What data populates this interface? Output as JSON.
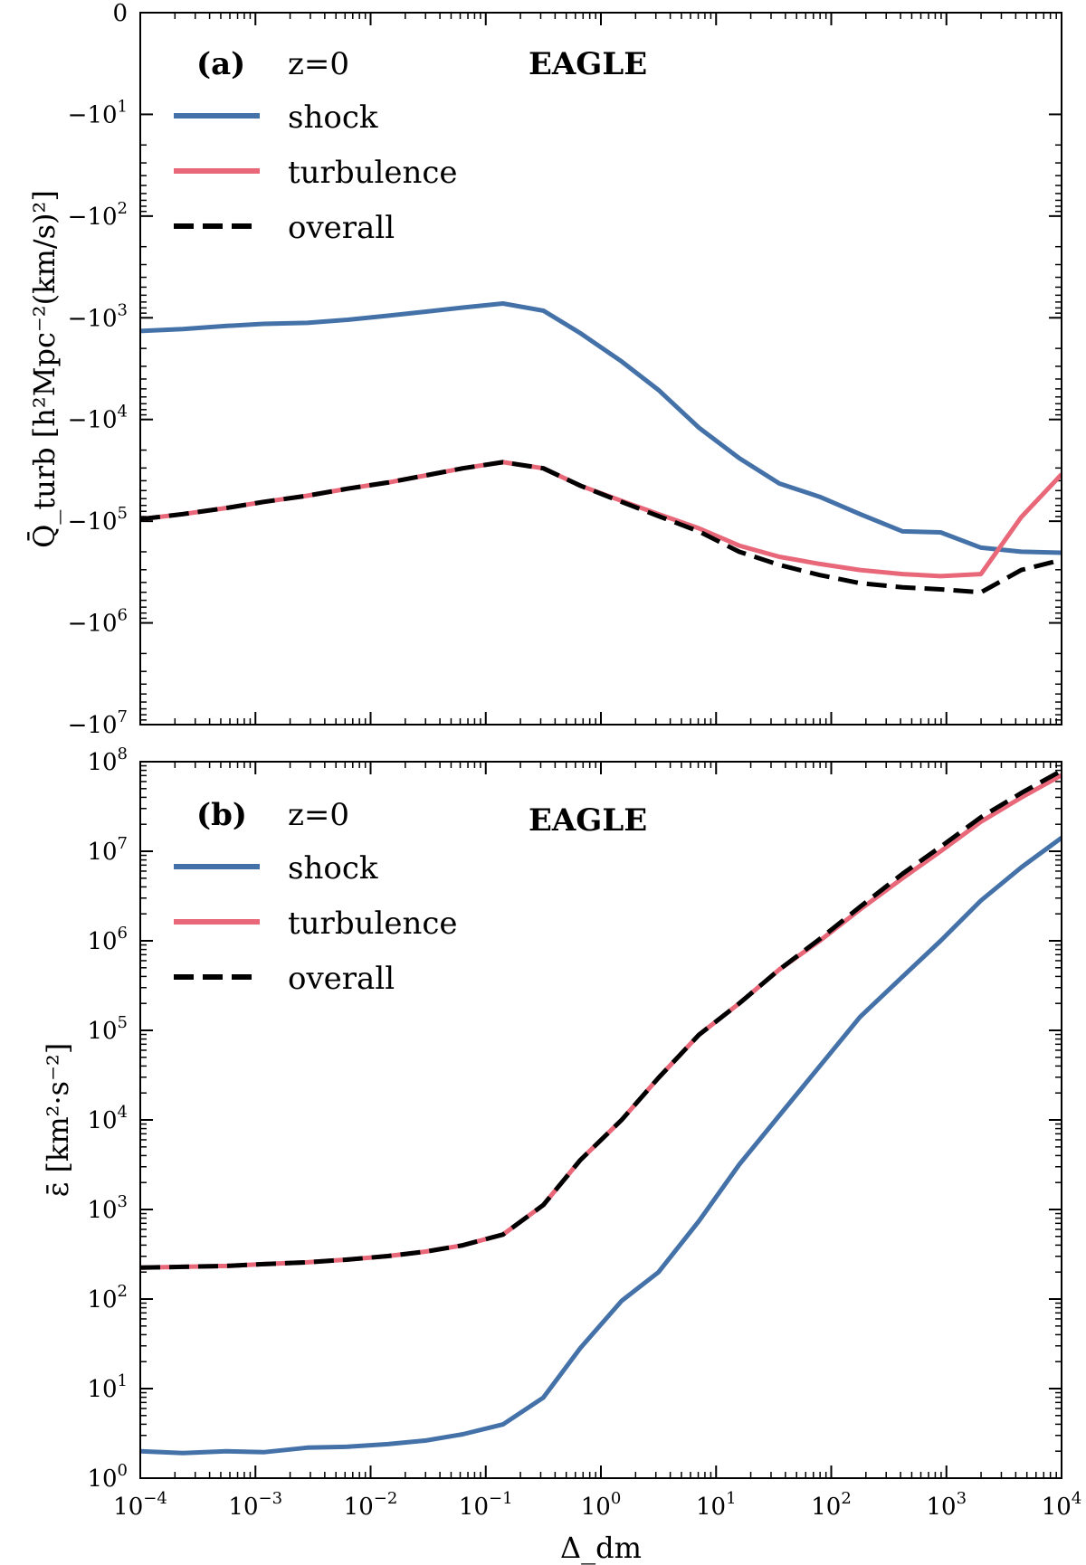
{
  "chart_data": [
    {
      "type": "line",
      "panel": "(a)",
      "redshift_label": "z=0",
      "simulation_label": "EAGLE",
      "xlabel": "Δ_dm",
      "ylabel": "Q̄_turb [h²Mpc⁻²(km/s)²]",
      "xscale": "log",
      "yscale": "symlog-negative",
      "xlim": [
        0.0001,
        10000
      ],
      "ylim": [
        0,
        -10000000
      ],
      "x_ticks": [
        "10^-4",
        "10^-3",
        "10^-2",
        "10^-1",
        "10^0",
        "10^1",
        "10^2",
        "10^3",
        "10^4"
      ],
      "y_ticks": [
        "0",
        "-10^1",
        "-10^2",
        "-10^3",
        "-10^4",
        "-10^5",
        "-10^6",
        "-10^7"
      ],
      "x_log": [
        -4,
        -3.63,
        -3.25,
        -2.93,
        -2.55,
        -2.2,
        -1.85,
        -1.52,
        -1.2,
        -0.85,
        -0.5,
        -0.18,
        0.18,
        0.5,
        0.85,
        1.2,
        1.55,
        1.9,
        2.25,
        2.62,
        2.95,
        3.3,
        3.65,
        4
      ],
      "series": [
        {
          "name": "shock",
          "color": "#4472a8",
          "style": "solid",
          "values_log_abs": [
            3.13,
            3.11,
            3.08,
            3.06,
            3.05,
            3.02,
            2.98,
            2.94,
            2.9,
            2.86,
            2.93,
            3.15,
            3.43,
            3.71,
            4.08,
            4.38,
            4.63,
            4.76,
            4.93,
            5.1,
            5.11,
            5.26,
            5.3,
            5.31
          ]
        },
        {
          "name": "turbulence",
          "color": "#e8687a",
          "style": "solid",
          "values_log_abs": [
            4.98,
            4.93,
            4.87,
            4.81,
            4.75,
            4.68,
            4.62,
            4.55,
            4.48,
            4.42,
            4.48,
            4.65,
            4.8,
            4.93,
            5.07,
            5.24,
            5.35,
            5.42,
            5.48,
            5.52,
            5.54,
            5.52,
            4.96,
            4.54
          ]
        },
        {
          "name": "overall",
          "color": "#000000",
          "style": "dashed",
          "values_log_abs": [
            4.98,
            4.93,
            4.87,
            4.81,
            4.75,
            4.68,
            4.62,
            4.55,
            4.48,
            4.42,
            4.48,
            4.65,
            4.81,
            4.95,
            5.1,
            5.3,
            5.43,
            5.53,
            5.61,
            5.65,
            5.67,
            5.7,
            5.48,
            5.38
          ]
        }
      ]
    },
    {
      "type": "line",
      "panel": "(b)",
      "redshift_label": "z=0",
      "simulation_label": "EAGLE",
      "xlabel": "Δ_dm",
      "ylabel": "ε̄ [km²·s⁻²]",
      "xscale": "log",
      "yscale": "log",
      "xlim": [
        0.0001,
        10000
      ],
      "ylim": [
        1,
        100000000
      ],
      "x_ticks": [
        "10^-4",
        "10^-3",
        "10^-2",
        "10^-1",
        "10^0",
        "10^1",
        "10^2",
        "10^3",
        "10^4"
      ],
      "y_ticks": [
        "10^0",
        "10^1",
        "10^2",
        "10^3",
        "10^4",
        "10^5",
        "10^6",
        "10^7",
        "10^8"
      ],
      "x_log": [
        -4,
        -3.63,
        -3.25,
        -2.93,
        -2.55,
        -2.2,
        -1.85,
        -1.52,
        -1.2,
        -0.85,
        -0.5,
        -0.18,
        0.18,
        0.5,
        0.85,
        1.2,
        1.55,
        1.9,
        2.25,
        2.62,
        2.95,
        3.3,
        3.65,
        4
      ],
      "series": [
        {
          "name": "shock",
          "color": "#4472a8",
          "style": "solid",
          "values_log": [
            0.3,
            0.28,
            0.3,
            0.29,
            0.34,
            0.35,
            0.38,
            0.42,
            0.49,
            0.6,
            0.9,
            1.45,
            1.98,
            2.3,
            2.87,
            3.5,
            4.05,
            4.6,
            5.15,
            5.6,
            6.0,
            6.45,
            6.82,
            7.15
          ]
        },
        {
          "name": "turbulence",
          "color": "#e8687a",
          "style": "solid",
          "values_log": [
            2.35,
            2.36,
            2.37,
            2.39,
            2.41,
            2.44,
            2.48,
            2.53,
            2.6,
            2.72,
            3.05,
            3.55,
            4.0,
            4.47,
            4.95,
            5.3,
            5.68,
            6.0,
            6.35,
            6.7,
            7.0,
            7.33,
            7.6,
            7.85
          ]
        },
        {
          "name": "overall",
          "color": "#000000",
          "style": "dashed",
          "values_log": [
            2.35,
            2.36,
            2.37,
            2.39,
            2.41,
            2.44,
            2.48,
            2.53,
            2.6,
            2.72,
            3.05,
            3.55,
            4.0,
            4.47,
            4.95,
            5.3,
            5.68,
            6.02,
            6.38,
            6.75,
            7.05,
            7.38,
            7.65,
            7.9
          ]
        }
      ]
    }
  ]
}
